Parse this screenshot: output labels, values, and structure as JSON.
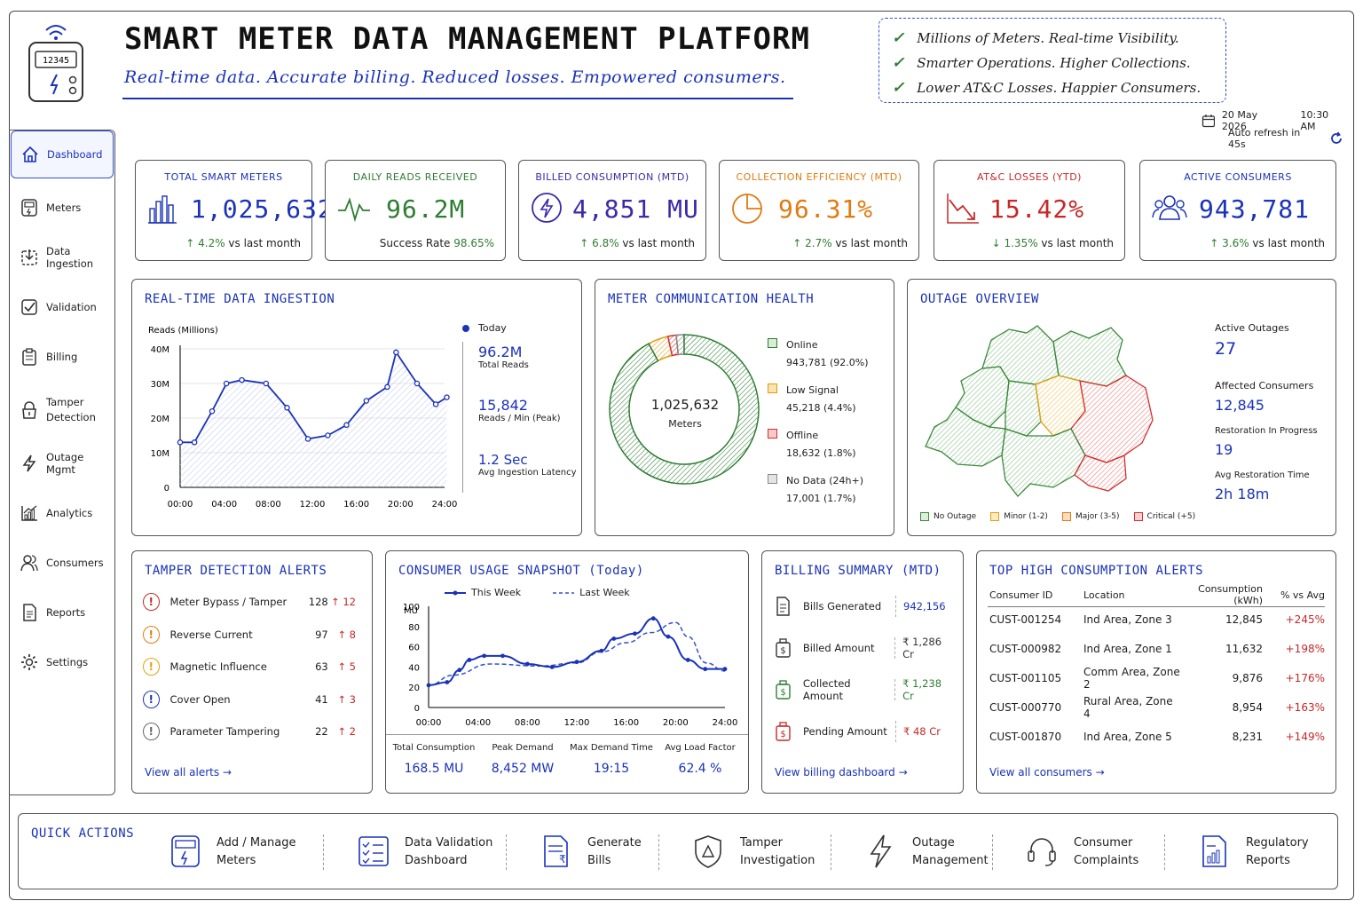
{
  "header": {
    "title": "SMART METER DATA MANAGEMENT PLATFORM",
    "tagline": "Real-time data. Accurate billing. Reduced losses. Empowered consumers.",
    "logo_number": "12345",
    "benefits": [
      "Millions of Meters. Real-time Visibility.",
      "Smarter Operations. Higher Collections.",
      "Lower AT&C Losses. Happier Consumers."
    ],
    "date": "20 May 2026",
    "time": "10:30 AM",
    "refresh": "Auto refresh in 45s"
  },
  "sidebar": {
    "items": [
      {
        "label": "Dashboard",
        "icon": "home-icon"
      },
      {
        "label": "Meters",
        "icon": "meter-icon"
      },
      {
        "label": "Data Ingestion",
        "icon": "ingestion-icon"
      },
      {
        "label": "Validation",
        "icon": "validation-icon"
      },
      {
        "label": "Billing",
        "icon": "billing-icon"
      },
      {
        "label": "Tamper Detection",
        "icon": "lock-icon"
      },
      {
        "label": "Outage Mgmt",
        "icon": "lightning-icon"
      },
      {
        "label": "Analytics",
        "icon": "analytics-icon"
      },
      {
        "label": "Consumers",
        "icon": "users-icon"
      },
      {
        "label": "Reports",
        "icon": "report-icon"
      },
      {
        "label": "Settings",
        "icon": "gear-icon"
      }
    ]
  },
  "kpis": [
    {
      "label": "TOTAL SMART METERS",
      "value": "1,025,632",
      "sub": "↑ 4.2% vs last month",
      "color": "#1a32b8"
    },
    {
      "label": "DAILY READS RECEIVED",
      "value": "96.2M",
      "sub": "Success Rate 98.65%",
      "color": "#2e7d32"
    },
    {
      "label": "BILLED CONSUMPTION (MTD)",
      "value": "4,851 MU",
      "sub": "↑ 6.8% vs last month",
      "color": "#3b2aa8"
    },
    {
      "label": "COLLECTION EFFICIENCY (MTD)",
      "value": "96.31%",
      "sub": "↑ 2.7% vs last month",
      "color": "#e07b10"
    },
    {
      "label": "AT&C LOSSES (YTD)",
      "value": "15.42%",
      "sub": "↓ 1.35% vs last month",
      "color": "#c62828"
    },
    {
      "label": "ACTIVE CONSUMERS",
      "value": "943,781",
      "sub": "↑ 3.6% vs last month",
      "color": "#1a32b8"
    }
  ],
  "ingestion": {
    "title": "REAL-TIME DATA INGESTION",
    "legend": "Today",
    "stats": [
      {
        "value": "96.2M",
        "label": "Total Reads"
      },
      {
        "value": "15,842",
        "label": "Reads / Min (Peak)"
      },
      {
        "value": "1.2 Sec",
        "label": "Avg Ingestion Latency"
      }
    ]
  },
  "health": {
    "title": "METER COMMUNICATION HEALTH",
    "center_value": "1,025,632",
    "center_label": "Meters",
    "items": [
      {
        "label": "Online",
        "value": "943,781 (92.0%)",
        "color": "#2e7d32",
        "fill": "#d8ecd8"
      },
      {
        "label": "Low Signal",
        "value": "45,218 (4.4%)",
        "color": "#e09a10",
        "fill": "#fbe3b0"
      },
      {
        "label": "Offline",
        "value": "18,632 (1.8%)",
        "color": "#d32f2f",
        "fill": "#f7c9c9"
      },
      {
        "label": "No Data (24h+)",
        "value": "17,001 (1.7%)",
        "color": "#888888",
        "fill": "#e4e4e4"
      }
    ]
  },
  "outage": {
    "title": "OUTAGE OVERVIEW",
    "stats": [
      {
        "label": "Active Outages",
        "value": "27"
      },
      {
        "label": "Affected Consumers",
        "value": "12,845"
      },
      {
        "label": "Restoration In Progress",
        "value": "19"
      },
      {
        "label": "Avg Restoration Time",
        "value": "2h 18m"
      }
    ],
    "legend": [
      "No Outage",
      "Minor (1-2)",
      "Major (3-5)",
      "Critical (+5)"
    ]
  },
  "tamper": {
    "title": "TAMPER DETECTION ALERTS",
    "alerts": [
      {
        "name": "Meter Bypass / Tamper",
        "count": "128",
        "delta": "↑ 12",
        "color": "#c62828"
      },
      {
        "name": "Reverse Current",
        "count": "97",
        "delta": "↑ 8",
        "color": "#e07b10"
      },
      {
        "name": "Magnetic Influence",
        "count": "63",
        "delta": "↑ 5",
        "color": "#e0a010"
      },
      {
        "name": "Cover Open",
        "count": "41",
        "delta": "↑ 3",
        "color": "#1a32b8"
      },
      {
        "name": "Parameter Tampering",
        "count": "22",
        "delta": "↑ 2",
        "color": "#666666"
      }
    ],
    "link": "View all alerts →"
  },
  "usage": {
    "title": "CONSUMER USAGE SNAPSHOT (Today)",
    "legend_this": "This Week",
    "legend_last": "Last Week",
    "stats": [
      {
        "label": "Total Consumption",
        "value": "168.5 MU"
      },
      {
        "label": "Peak Demand",
        "value": "8,452 MW"
      },
      {
        "label": "Max Demand Time",
        "value": "19:15"
      },
      {
        "label": "Avg Load Factor",
        "value": "62.4 %"
      }
    ]
  },
  "billing": {
    "title": "BILLING SUMMARY (MTD)",
    "rows": [
      {
        "label": "Bills Generated",
        "value": "942,156",
        "color": "#333333"
      },
      {
        "label": "Billed Amount",
        "value": "₹ 1,286 Cr",
        "color": "#333333"
      },
      {
        "label": "Collected Amount",
        "value": "₹ 1,238 Cr",
        "color": "#2e7d32"
      },
      {
        "label": "Pending Amount",
        "value": "₹ 48 Cr",
        "color": "#c62828"
      }
    ],
    "link": "View billing dashboard →"
  },
  "top": {
    "title": "TOP HIGH CONSUMPTION ALERTS",
    "headers": [
      "Consumer ID",
      "Location",
      "Consumption (kWh)",
      "% vs Avg"
    ],
    "rows": [
      [
        "CUST-001254",
        "Ind Area, Zone 3",
        "12,845",
        "+245%"
      ],
      [
        "CUST-000982",
        "Ind Area, Zone 1",
        "11,632",
        "+198%"
      ],
      [
        "CUST-001105",
        "Comm Area, Zone 2",
        "9,876",
        "+176%"
      ],
      [
        "CUST-000770",
        "Rural Area, Zone 4",
        "8,954",
        "+163%"
      ],
      [
        "CUST-001870",
        "Ind Area, Zone 5",
        "8,231",
        "+149%"
      ]
    ],
    "link": "View all consumers →"
  },
  "quick": {
    "title": "QUICK ACTIONS",
    "actions": [
      {
        "l1": "Add / Manage",
        "l2": "Meters",
        "icon": "meter-icon"
      },
      {
        "l1": "Data Validation",
        "l2": "Dashboard",
        "icon": "checklist-icon"
      },
      {
        "l1": "Generate",
        "l2": "Bills",
        "icon": "bill-icon"
      },
      {
        "l1": "Tamper",
        "l2": "Investigation",
        "icon": "shield-icon"
      },
      {
        "l1": "Outage",
        "l2": "Management",
        "icon": "lightning-icon"
      },
      {
        "l1": "Consumer",
        "l2": "Complaints",
        "icon": "headset-icon"
      },
      {
        "l1": "Regulatory",
        "l2": "Reports",
        "icon": "report-icon"
      }
    ]
  },
  "chart_data": [
    {
      "type": "area",
      "ylabel": "Reads (Millions)",
      "x": [
        "00:00",
        "01:00",
        "02:00",
        "03:00",
        "04:00",
        "05:00",
        "06:00",
        "07:00",
        "08:00",
        "09:00",
        "10:00",
        "11:00",
        "12:00",
        "13:00",
        "14:00",
        "15:00",
        "16:00",
        "17:00",
        "18:00",
        "19:00",
        "20:00",
        "21:00",
        "22:00",
        "23:00",
        "24:00"
      ],
      "xticks": [
        "00:00",
        "04:00",
        "08:00",
        "12:00",
        "16:00",
        "20:00",
        "24:00"
      ],
      "yticks": [
        "0",
        "10M",
        "20M",
        "30M",
        "40M"
      ],
      "ylim": [
        0,
        40
      ],
      "series": [
        {
          "name": "Today",
          "values": [
            null,
            13,
            null,
            13,
            null,
            22,
            30,
            31,
            31,
            23,
            14,
            15,
            null,
            null,
            null,
            25,
            null,
            31,
            null,
            39,
            31,
            null,
            24,
            26,
            null
          ]
        }
      ],
      "points": [
        [
          0,
          13
        ],
        [
          1.3,
          13
        ],
        [
          2.9,
          22
        ],
        [
          4.2,
          30
        ],
        [
          5.6,
          31
        ],
        [
          7.8,
          30
        ],
        [
          9.7,
          23
        ],
        [
          11.6,
          14
        ],
        [
          13.4,
          15
        ],
        [
          15.1,
          18
        ],
        [
          16.9,
          25
        ],
        [
          18.8,
          29
        ],
        [
          19.6,
          39
        ],
        [
          21.5,
          30
        ],
        [
          23.2,
          24
        ],
        [
          24.2,
          26
        ]
      ]
    },
    {
      "type": "pie",
      "categories": [
        "Online",
        "Low Signal",
        "Offline",
        "No Data (24h+)"
      ],
      "values": [
        92.0,
        4.4,
        1.8,
        1.7
      ]
    },
    {
      "type": "line",
      "ylabel": "MU",
      "xticks": [
        "00:00",
        "04:00",
        "08:00",
        "12:00",
        "16:00",
        "20:00",
        "24:00"
      ],
      "yticks": [
        "0",
        "20",
        "40",
        "60",
        "80",
        "100"
      ],
      "ylim": [
        0,
        100
      ],
      "series": [
        {
          "name": "This Week",
          "points": [
            [
              0,
              22
            ],
            [
              1.5,
              25
            ],
            [
              2.5,
              37
            ],
            [
              3.3,
              47
            ],
            [
              4.5,
              51
            ],
            [
              6,
              51
            ],
            [
              8,
              43
            ],
            [
              10,
              40
            ],
            [
              12,
              45
            ],
            [
              14,
              56
            ],
            [
              15,
              68
            ],
            [
              16.7,
              73
            ],
            [
              18.2,
              88
            ],
            [
              19.4,
              70
            ],
            [
              21,
              47
            ],
            [
              22.4,
              38
            ],
            [
              24,
              38
            ]
          ]
        },
        {
          "name": "Last Week",
          "points": [
            [
              0,
              22
            ],
            [
              2,
              32
            ],
            [
              5,
              43
            ],
            [
              9,
              41
            ],
            [
              12,
              44
            ],
            [
              14,
              55
            ],
            [
              16,
              64
            ],
            [
              18,
              74
            ],
            [
              20,
              84
            ],
            [
              21,
              70
            ],
            [
              22.5,
              44
            ],
            [
              24,
              36
            ]
          ]
        }
      ]
    }
  ]
}
